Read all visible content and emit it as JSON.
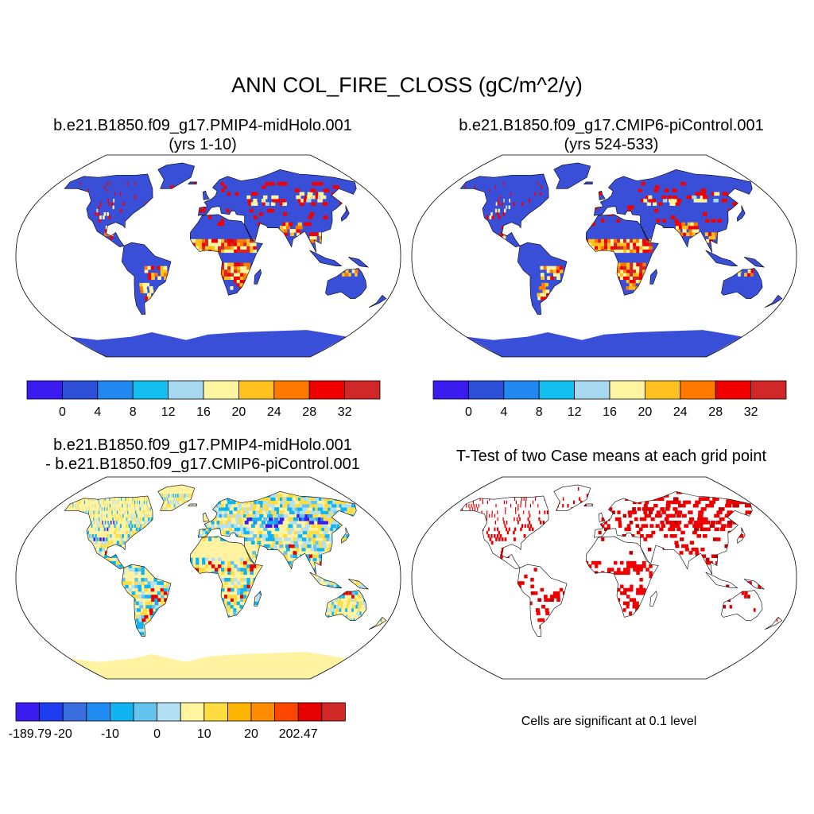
{
  "figure": {
    "title": "ANN COL_FIRE_CLOSS (gC/m^2/y)"
  },
  "panels": {
    "top_left": {
      "title_line1": "b.e21.B1850.f09_g17.PMIP4-midHolo.001",
      "title_line2": "(yrs 1-10)"
    },
    "top_right": {
      "title_line1": "b.e21.B1850.f09_g17.CMIP6-piControl.001",
      "title_line2": "(yrs 524-533)"
    },
    "bottom_left": {
      "title_line1": "b.e21.B1850.f09_g17.PMIP4-midHolo.001",
      "title_line2": "- b.e21.B1850.f09_g17.CMIP6-piControl.001"
    },
    "bottom_right": {
      "title_line1": "T-Test of two Case means at each grid point",
      "note": "Cells are significant at 0.1 level"
    }
  },
  "chart_data": [
    {
      "type": "heatmap",
      "panel": "top_left",
      "projection": "Robinson",
      "title": "b.e21.B1850.f09_g17.PMIP4-midHolo.001 (yrs 1-10)",
      "units": "gC/m^2/y",
      "colorbar": {
        "levels": [
          0,
          4,
          8,
          12,
          16,
          20,
          24,
          28,
          32
        ],
        "tick_labels": [
          "0",
          "4",
          "8",
          "12",
          "16",
          "20",
          "24",
          "28",
          "32"
        ],
        "colors": [
          "#3a1cf0",
          "#2d4fd8",
          "#2088f0",
          "#14bef0",
          "#a6d8f0",
          "#fff5a0",
          "#ffc020",
          "#ff7800",
          "#f00000",
          "#d02828"
        ]
      }
    },
    {
      "type": "heatmap",
      "panel": "top_right",
      "projection": "Robinson",
      "title": "b.e21.B1850.f09_g17.CMIP6-piControl.001 (yrs 524-533)",
      "units": "gC/m^2/y",
      "colorbar": {
        "levels": [
          0,
          4,
          8,
          12,
          16,
          20,
          24,
          28,
          32
        ],
        "tick_labels": [
          "0",
          "4",
          "8",
          "12",
          "16",
          "20",
          "24",
          "28",
          "32"
        ],
        "colors": [
          "#3a1cf0",
          "#2d4fd8",
          "#2088f0",
          "#14bef0",
          "#a6d8f0",
          "#fff5a0",
          "#ffc020",
          "#ff7800",
          "#f00000",
          "#d02828"
        ]
      }
    },
    {
      "type": "heatmap",
      "panel": "bottom_left",
      "projection": "Robinson",
      "title": "PMIP4-midHolo.001 - CMIP6-piControl.001",
      "units": "gC/m^2/y",
      "colorbar": {
        "min": -189.79,
        "max": 202.47,
        "tick_labels": [
          "-189.79",
          "-20",
          "-10",
          "0",
          "10",
          "20",
          "202.47"
        ],
        "tick_boxes": [
          0,
          2,
          4,
          6,
          8,
          10,
          12
        ],
        "colors": [
          "#3a1cf0",
          "#1e3cf0",
          "#3a6ee0",
          "#1e8cf0",
          "#10b4f0",
          "#64c4ee",
          "#b4e0f4",
          "#fff5a0",
          "#ffdc40",
          "#ffb400",
          "#ff8c00",
          "#ff4600",
          "#e60000",
          "#d22828"
        ]
      }
    },
    {
      "type": "heatmap",
      "panel": "bottom_right",
      "projection": "Robinson",
      "title": "T-Test of two Case means at each grid point",
      "significance_level": 0.1,
      "colors": {
        "significant": "#ee0000",
        "not_significant": "#ffffff"
      }
    }
  ],
  "colors": {
    "ocean": "#ffffff",
    "land_low": "#3a4fd8",
    "land_diff_zero": "#fff2a0",
    "outline": "#000000"
  }
}
